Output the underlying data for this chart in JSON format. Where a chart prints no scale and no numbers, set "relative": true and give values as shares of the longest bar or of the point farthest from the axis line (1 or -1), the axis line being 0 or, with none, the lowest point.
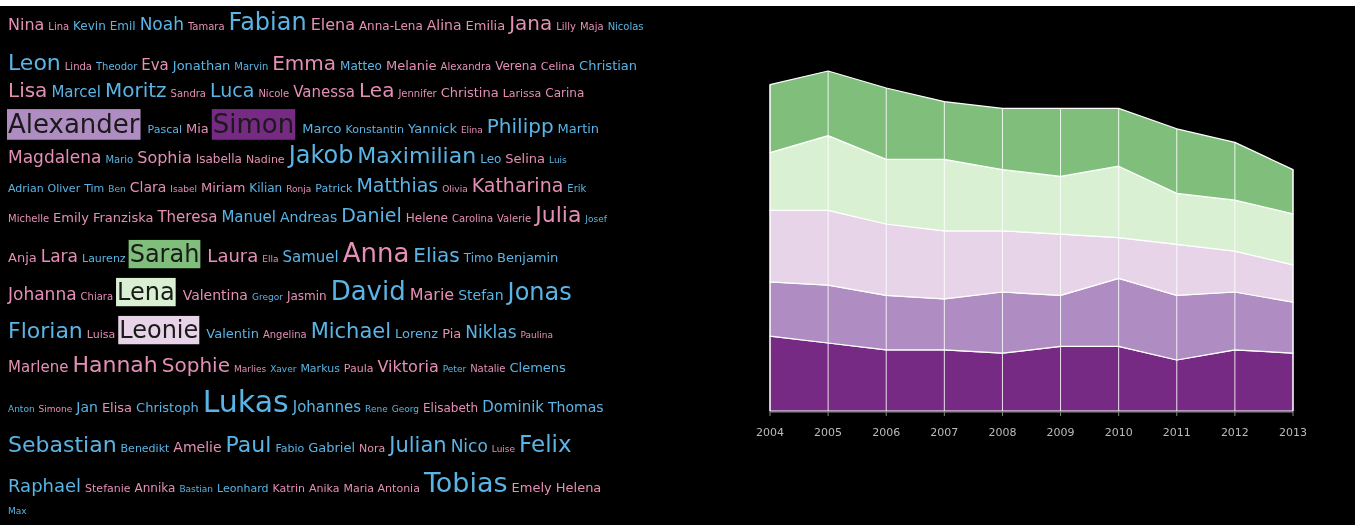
{
  "chart_data": [
    {
      "type": "other",
      "categories": [
        "Nina",
        "Lina",
        "Kevin",
        "Emil",
        "Noah",
        "Tamara",
        "Fabian",
        "Elena",
        "Anna-Lena",
        "Alina",
        "Emilia",
        "Jana",
        "Lilly",
        "Maja",
        "Nicolas",
        "Leon",
        "Linda",
        "Theodor",
        "Eva",
        "Jonathan",
        "Marvin",
        "Emma",
        "Matteo",
        "Melanie",
        "Alexandra",
        "Verena",
        "Celina",
        "Christian",
        "Lisa",
        "Marcel",
        "Moritz",
        "Sandra",
        "Luca",
        "Nicole",
        "Vanessa",
        "Lea",
        "Jennifer",
        "Christina",
        "Larissa",
        "Carina",
        "Alexander",
        "Pascal",
        "Mia",
        "Simon",
        "Marco",
        "Konstantin",
        "Yannick",
        "Elina",
        "Philipp",
        "Martin",
        "Magdalena",
        "Mario",
        "Sophia",
        "Isabella",
        "Nadine",
        "Jakob",
        "Maximilian",
        "Leo",
        "Selina",
        "Luis",
        "Adrian",
        "Oliver",
        "Tim",
        "Ben",
        "Clara",
        "Isabel",
        "Miriam",
        "Kilian",
        "Ronja",
        "Patrick",
        "Matthias",
        "Olivia",
        "Katharina",
        "Erik",
        "Michelle",
        "Emily",
        "Franziska",
        "Theresa",
        "Manuel",
        "Andreas",
        "Daniel",
        "Helene",
        "Carolina",
        "Valerie",
        "Julia",
        "Josef",
        "Anja",
        "Lara",
        "Laurenz",
        "Sarah",
        "Laura",
        "Ella",
        "Samuel",
        "Anna",
        "Elias",
        "Timo",
        "Benjamin",
        "Johanna",
        "Chiara",
        "Lena",
        "Valentina",
        "Gregor",
        "Jasmin",
        "David",
        "Marie",
        "Stefan",
        "Jonas",
        "Florian",
        "Luisa",
        "Leonie",
        "Valentin",
        "Angelina",
        "Michael",
        "Lorenz",
        "Pia",
        "Niklas",
        "Paulina",
        "Marlene",
        "Hannah",
        "Sophie",
        "Marlies",
        "Xaver",
        "Markus",
        "Paula",
        "Viktoria",
        "Peter",
        "Natalie",
        "Clemens",
        "Anton",
        "Simone",
        "Jan",
        "Elisa",
        "Christoph",
        "Lukas",
        "Johannes",
        "Rene",
        "Georg",
        "Elisabeth",
        "Dominik",
        "Thomas",
        "Sebastian",
        "Benedikt",
        "Amelie",
        "Paul",
        "Fabio",
        "Gabriel",
        "Nora",
        "Julian",
        "Nico",
        "Luise",
        "Felix",
        "Raphael",
        "Stefanie",
        "Annika",
        "Bastian",
        "Leonhard",
        "Katrin",
        "Anika",
        "Maria Antonia",
        "Tobias",
        "Emely",
        "Helena",
        "Max"
      ],
      "colors": [
        "#e58fb5",
        "#e58fb5",
        "#5ab4e5",
        "#5ab4e5",
        "#5ab4e5",
        "#e58fb5",
        "#5ab4e5",
        "#e58fb5",
        "#e58fb5",
        "#e58fb5",
        "#e58fb5",
        "#e58fb5",
        "#e58fb5",
        "#e58fb5",
        "#5ab4e5",
        "#5ab4e5",
        "#e58fb5",
        "#5ab4e5",
        "#e58fb5",
        "#5ab4e5",
        "#5ab4e5",
        "#e58fb5",
        "#5ab4e5",
        "#e58fb5",
        "#e58fb5",
        "#e58fb5",
        "#e58fb5",
        "#5ab4e5",
        "#e58fb5",
        "#5ab4e5",
        "#5ab4e5",
        "#e58fb5",
        "#5ab4e5",
        "#e58fb5",
        "#e58fb5",
        "#e58fb5",
        "#e58fb5",
        "#e58fb5",
        "#e58fb5",
        "#e58fb5",
        "#af8dc3",
        "#5ab4e5",
        "#e58fb5",
        "#762a83",
        "#5ab4e5",
        "#5ab4e5",
        "#5ab4e5",
        "#e58fb5",
        "#5ab4e5",
        "#5ab4e5",
        "#e58fb5",
        "#5ab4e5",
        "#e58fb5",
        "#e58fb5",
        "#e58fb5",
        "#5ab4e5",
        "#5ab4e5",
        "#5ab4e5",
        "#e58fb5",
        "#5ab4e5",
        "#5ab4e5",
        "#5ab4e5",
        "#5ab4e5",
        "#5ab4e5",
        "#e58fb5",
        "#e58fb5",
        "#e58fb5",
        "#5ab4e5",
        "#e58fb5",
        "#5ab4e5",
        "#5ab4e5",
        "#e58fb5",
        "#e58fb5",
        "#5ab4e5",
        "#e58fb5",
        "#e58fb5",
        "#e58fb5",
        "#e58fb5",
        "#5ab4e5",
        "#5ab4e5",
        "#5ab4e5",
        "#e58fb5",
        "#e58fb5",
        "#e58fb5",
        "#e58fb5",
        "#5ab4e5",
        "#e58fb5",
        "#e58fb5",
        "#5ab4e5",
        "#7fbf7b",
        "#e58fb5",
        "#e58fb5",
        "#5ab4e5",
        "#e58fb5",
        "#5ab4e5",
        "#5ab4e5",
        "#5ab4e5",
        "#e58fb5",
        "#e58fb5",
        "#d9f0d3",
        "#e58fb5",
        "#5ab4e5",
        "#e58fb5",
        "#5ab4e5",
        "#e58fb5",
        "#5ab4e5",
        "#5ab4e5",
        "#5ab4e5",
        "#e58fb5",
        "#e7d4e8",
        "#5ab4e5",
        "#e58fb5",
        "#5ab4e5",
        "#5ab4e5",
        "#e58fb5",
        "#5ab4e5",
        "#e58fb5",
        "#e58fb5",
        "#e58fb5",
        "#e58fb5",
        "#e58fb5",
        "#5ab4e5",
        "#5ab4e5",
        "#e58fb5",
        "#e58fb5",
        "#5ab4e5",
        "#e58fb5",
        "#5ab4e5",
        "#5ab4e5",
        "#e58fb5",
        "#5ab4e5",
        "#e58fb5",
        "#5ab4e5",
        "#5ab4e5",
        "#5ab4e5",
        "#5ab4e5",
        "#5ab4e5",
        "#e58fb5",
        "#5ab4e5",
        "#5ab4e5",
        "#5ab4e5",
        "#5ab4e5",
        "#e58fb5",
        "#5ab4e5",
        "#5ab4e5",
        "#5ab4e5",
        "#e58fb5",
        "#5ab4e5",
        "#5ab4e5",
        "#e58fb5",
        "#5ab4e5",
        "#5ab4e5",
        "#e58fb5",
        "#e58fb5",
        "#5ab4e5",
        "#5ab4e5",
        "#e58fb5",
        "#e58fb5",
        "#e58fb5",
        "#5ab4e5",
        "#e58fb5",
        "#e58fb5",
        "#5ab4e5"
      ]
    },
    {
      "type": "area",
      "stacked": true,
      "relative": true,
      "grid": "x",
      "categories": [
        "2004",
        "2005",
        "2006",
        "2007",
        "2008",
        "2009",
        "2010",
        "2011",
        "2012",
        "2013"
      ],
      "series": [
        {
          "color": "#762a83",
          "values": [
            0.22,
            0.2,
            0.18,
            0.18,
            0.17,
            0.19,
            0.19,
            0.15,
            0.18,
            0.17
          ]
        },
        {
          "color": "#af8dc3",
          "values": [
            0.16,
            0.17,
            0.16,
            0.15,
            0.18,
            0.15,
            0.2,
            0.19,
            0.17,
            0.15
          ]
        },
        {
          "color": "#e7d4e8",
          "values": [
            0.21,
            0.22,
            0.21,
            0.2,
            0.18,
            0.18,
            0.12,
            0.15,
            0.12,
            0.11
          ]
        },
        {
          "color": "#d9f0d3",
          "values": [
            0.17,
            0.22,
            0.19,
            0.21,
            0.18,
            0.17,
            0.21,
            0.15,
            0.15,
            0.15
          ]
        },
        {
          "color": "#7fbf7b",
          "values": [
            0.2,
            0.19,
            0.21,
            0.17,
            0.18,
            0.2,
            0.17,
            0.19,
            0.17,
            0.13
          ]
        }
      ]
    }
  ]
}
